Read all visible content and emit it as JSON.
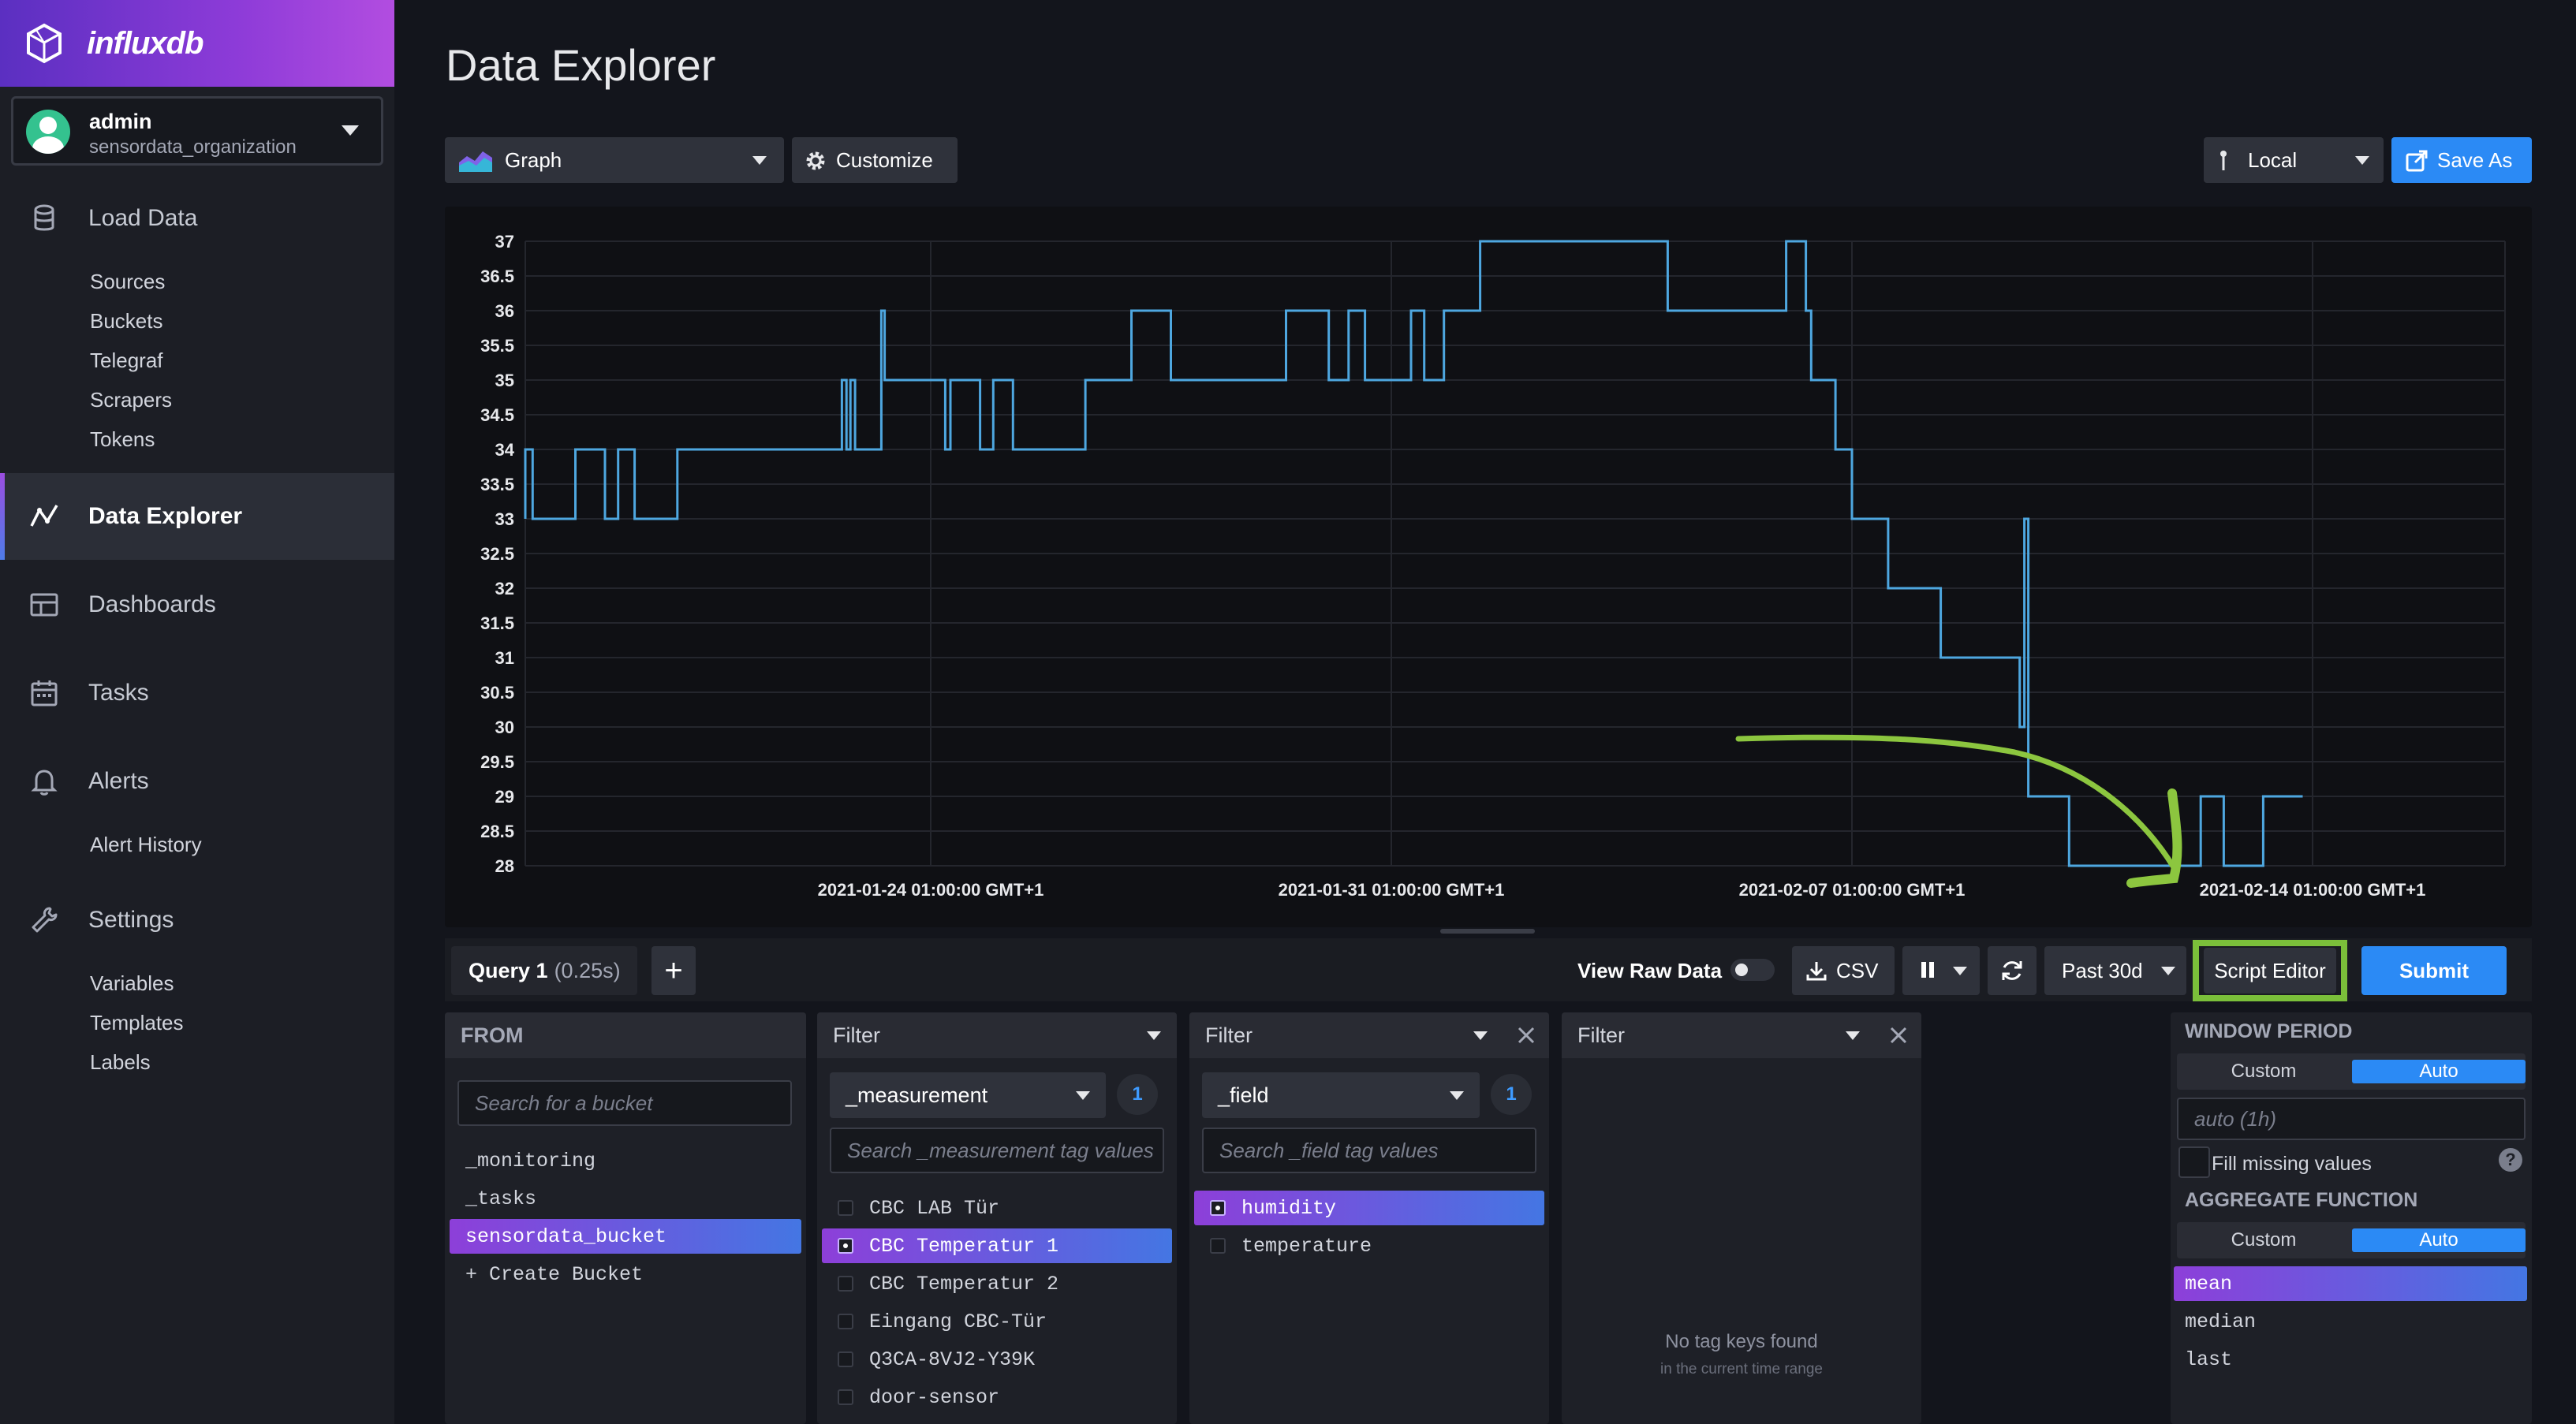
{
  "brand": {
    "name": "influxdb"
  },
  "user": {
    "name": "admin",
    "org": "sensordata_organization"
  },
  "nav": {
    "load_data": "Load Data",
    "load_data_items": [
      "Sources",
      "Buckets",
      "Telegraf",
      "Scrapers",
      "Tokens"
    ],
    "data_explorer": "Data Explorer",
    "dashboards": "Dashboards",
    "tasks": "Tasks",
    "alerts": "Alerts",
    "alerts_items": [
      "Alert History"
    ],
    "settings": "Settings",
    "settings_items": [
      "Variables",
      "Templates",
      "Labels"
    ]
  },
  "page": {
    "title": "Data Explorer"
  },
  "toolbar": {
    "vis_type": "Graph",
    "customize": "Customize",
    "timezone": "Local",
    "save_as": "Save As"
  },
  "chart_data": {
    "type": "line",
    "ylim": [
      28,
      37
    ],
    "y_ticks": [
      "37",
      "36.5",
      "36",
      "35.5",
      "35",
      "34.5",
      "34",
      "33.5",
      "33",
      "32.5",
      "32",
      "31.5",
      "31",
      "30.5",
      "30",
      "29.5",
      "29",
      "28.5",
      "28"
    ],
    "x_ticks": [
      "2021-01-24 01:00:00 GMT+1",
      "2021-01-31 01:00:00 GMT+1",
      "2021-02-07 01:00:00 GMT+1",
      "2021-02-14 01:00:00 GMT+1"
    ],
    "series": [
      {
        "color": "#4ea7e0",
        "points": [
          [
            -8.4,
            33
          ],
          [
            -7.5,
            33
          ],
          [
            -7.5,
            34
          ],
          [
            -7.25,
            34
          ],
          [
            -7.25,
            33
          ],
          [
            -6.2,
            33
          ],
          [
            -6.2,
            34
          ],
          [
            -6.05,
            34
          ],
          [
            -6.05,
            33
          ],
          [
            -5.4,
            33
          ],
          [
            -5.4,
            34
          ],
          [
            -4.95,
            34
          ],
          [
            -4.95,
            33
          ],
          [
            -4.75,
            33
          ],
          [
            -4.75,
            34
          ],
          [
            -4.5,
            34
          ],
          [
            -4.5,
            33
          ],
          [
            -3.85,
            33
          ],
          [
            -3.85,
            34
          ],
          [
            -1.35,
            34
          ],
          [
            -1.35,
            35
          ],
          [
            -1.28,
            35
          ],
          [
            -1.28,
            34
          ],
          [
            -1.22,
            34
          ],
          [
            -1.22,
            35
          ],
          [
            -1.15,
            35
          ],
          [
            -1.15,
            34
          ],
          [
            -0.75,
            34
          ],
          [
            -0.75,
            36
          ],
          [
            -0.7,
            36
          ],
          [
            -0.7,
            35
          ],
          [
            0.22,
            35
          ],
          [
            0.22,
            34
          ],
          [
            0.3,
            34
          ],
          [
            0.3,
            35
          ],
          [
            0.75,
            35
          ],
          [
            0.75,
            34
          ],
          [
            0.95,
            34
          ],
          [
            0.95,
            35
          ],
          [
            1.25,
            35
          ],
          [
            1.25,
            34
          ],
          [
            2.35,
            34
          ],
          [
            2.35,
            35
          ],
          [
            3.05,
            35
          ],
          [
            3.05,
            36
          ],
          [
            3.65,
            36
          ],
          [
            3.65,
            35
          ],
          [
            5.4,
            35
          ],
          [
            5.4,
            36
          ],
          [
            6.05,
            36
          ],
          [
            6.05,
            35
          ],
          [
            6.35,
            35
          ],
          [
            6.35,
            36
          ],
          [
            6.6,
            36
          ],
          [
            6.6,
            35
          ],
          [
            7.3,
            35
          ],
          [
            7.3,
            36
          ],
          [
            7.5,
            36
          ],
          [
            7.5,
            35
          ],
          [
            7.8,
            35
          ],
          [
            7.8,
            36
          ],
          [
            8.35,
            36
          ],
          [
            8.35,
            37
          ],
          [
            11.2,
            37
          ],
          [
            11.2,
            36
          ],
          [
            13.0,
            36
          ],
          [
            13.0,
            37
          ],
          [
            13.3,
            37
          ],
          [
            13.3,
            36
          ],
          [
            13.38,
            36
          ],
          [
            13.38,
            35
          ],
          [
            13.75,
            35
          ],
          [
            13.75,
            34
          ],
          [
            14.0,
            34
          ],
          [
            14.0,
            33
          ],
          [
            14.55,
            33
          ],
          [
            14.55,
            32
          ],
          [
            15.35,
            32
          ],
          [
            15.35,
            31
          ],
          [
            16.55,
            31
          ],
          [
            16.55,
            30
          ],
          [
            16.62,
            30
          ],
          [
            16.62,
            33
          ],
          [
            16.68,
            33
          ],
          [
            16.68,
            29
          ],
          [
            17.3,
            29
          ],
          [
            17.3,
            28
          ],
          [
            19.3,
            28
          ],
          [
            19.3,
            29
          ],
          [
            19.65,
            29
          ],
          [
            19.65,
            28
          ],
          [
            20.25,
            28
          ],
          [
            20.25,
            29
          ],
          [
            20.85,
            29
          ]
        ]
      }
    ]
  },
  "query": {
    "tab_name": "Query 1",
    "tab_time": "(0.25s)",
    "view_raw": "View Raw Data",
    "csv": "CSV",
    "time_range": "Past 30d",
    "script_editor": "Script Editor",
    "submit": "Submit"
  },
  "from": {
    "header": "FROM",
    "search_placeholder": "Search for a bucket",
    "buckets": [
      "_monitoring",
      "_tasks",
      "sensordata_bucket"
    ],
    "create": "+ Create Bucket"
  },
  "filter1": {
    "header": "Filter",
    "key": "_measurement",
    "count": "1",
    "search_placeholder": "Search _measurement tag values",
    "values": [
      "CBC LAB Tür",
      "CBC Temperatur 1",
      "CBC Temperatur 2",
      "Eingang CBC-Tür",
      "Q3CA-8VJ2-Y39K",
      "door-sensor"
    ]
  },
  "filter2": {
    "header": "Filter",
    "key": "_field",
    "count": "1",
    "search_placeholder": "Search _field tag values",
    "values": [
      "humidity",
      "temperature"
    ]
  },
  "filter3": {
    "header": "Filter",
    "empty_title": "No tag keys found",
    "empty_sub": "in the current time range"
  },
  "window": {
    "header": "WINDOW PERIOD",
    "custom": "Custom",
    "auto": "Auto",
    "period_placeholder": "auto (1h)",
    "fill_missing": "Fill missing values",
    "agg_header": "AGGREGATE FUNCTION",
    "functions": [
      "mean",
      "median",
      "last"
    ]
  }
}
